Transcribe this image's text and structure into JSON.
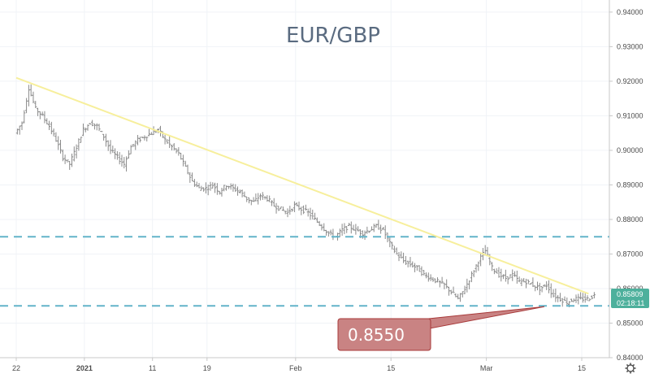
{
  "chart_data": {
    "type": "ohlc",
    "title": "EUR/GBP",
    "y_ticks": [
      "0.94000",
      "0.93000",
      "0.92000",
      "0.91000",
      "0.90000",
      "0.89000",
      "0.88000",
      "0.87000",
      "0.86000",
      "0.85000",
      "0.84000"
    ],
    "y_range": [
      0.84,
      0.9435
    ],
    "x_ticks": [
      {
        "label": "22",
        "day": 0,
        "bold": false
      },
      {
        "label": "2021",
        "day": 10,
        "bold": true
      },
      {
        "label": "11",
        "day": 20,
        "bold": false
      },
      {
        "label": "19",
        "day": 28,
        "bold": false
      },
      {
        "label": "Feb",
        "day": 41,
        "bold": false
      },
      {
        "label": "15",
        "day": 55,
        "bold": false
      },
      {
        "label": "Mar",
        "day": 69,
        "bold": false
      },
      {
        "label": "15",
        "day": 83,
        "bold": false
      }
    ],
    "close_series": [
      0.905,
      0.908,
      0.918,
      0.912,
      0.91,
      0.907,
      0.903,
      0.898,
      0.896,
      0.901,
      0.906,
      0.908,
      0.907,
      0.904,
      0.9,
      0.898,
      0.896,
      0.901,
      0.903,
      0.904,
      0.905,
      0.906,
      0.903,
      0.901,
      0.899,
      0.895,
      0.891,
      0.889,
      0.889,
      0.89,
      0.888,
      0.89,
      0.889,
      0.888,
      0.886,
      0.885,
      0.887,
      0.886,
      0.884,
      0.883,
      0.882,
      0.884,
      0.883,
      0.882,
      0.88,
      0.878,
      0.876,
      0.875,
      0.877,
      0.878,
      0.877,
      0.876,
      0.877,
      0.878,
      0.877,
      0.873,
      0.87,
      0.868,
      0.867,
      0.866,
      0.864,
      0.863,
      0.862,
      0.861,
      0.859,
      0.857,
      0.86,
      0.864,
      0.868,
      0.871,
      0.866,
      0.864,
      0.863,
      0.864,
      0.862,
      0.862,
      0.861,
      0.86,
      0.861,
      0.858,
      0.857,
      0.856,
      0.857,
      0.857,
      0.857,
      0.858
    ],
    "horizontal_levels": [
      0.875,
      0.855
    ],
    "trendline": {
      "start_day": 0,
      "start_value": 0.921,
      "end_day": 84,
      "end_value": 0.8585
    },
    "callout": {
      "text": "0.8550",
      "value": 0.855
    },
    "last_price": {
      "value": "0.85809",
      "countdown": "02:18:11"
    },
    "grid": true,
    "colors": {
      "bars": "#8a8a8a",
      "trendline": "#f7ef9c",
      "levels": "#62b4c9",
      "callout_fill": "#c98383",
      "callout_border": "#a83a3a",
      "price_label": "#4db09c",
      "title": "#5a6b80"
    }
  },
  "toolbar": {
    "settings_icon": "gear-icon"
  }
}
